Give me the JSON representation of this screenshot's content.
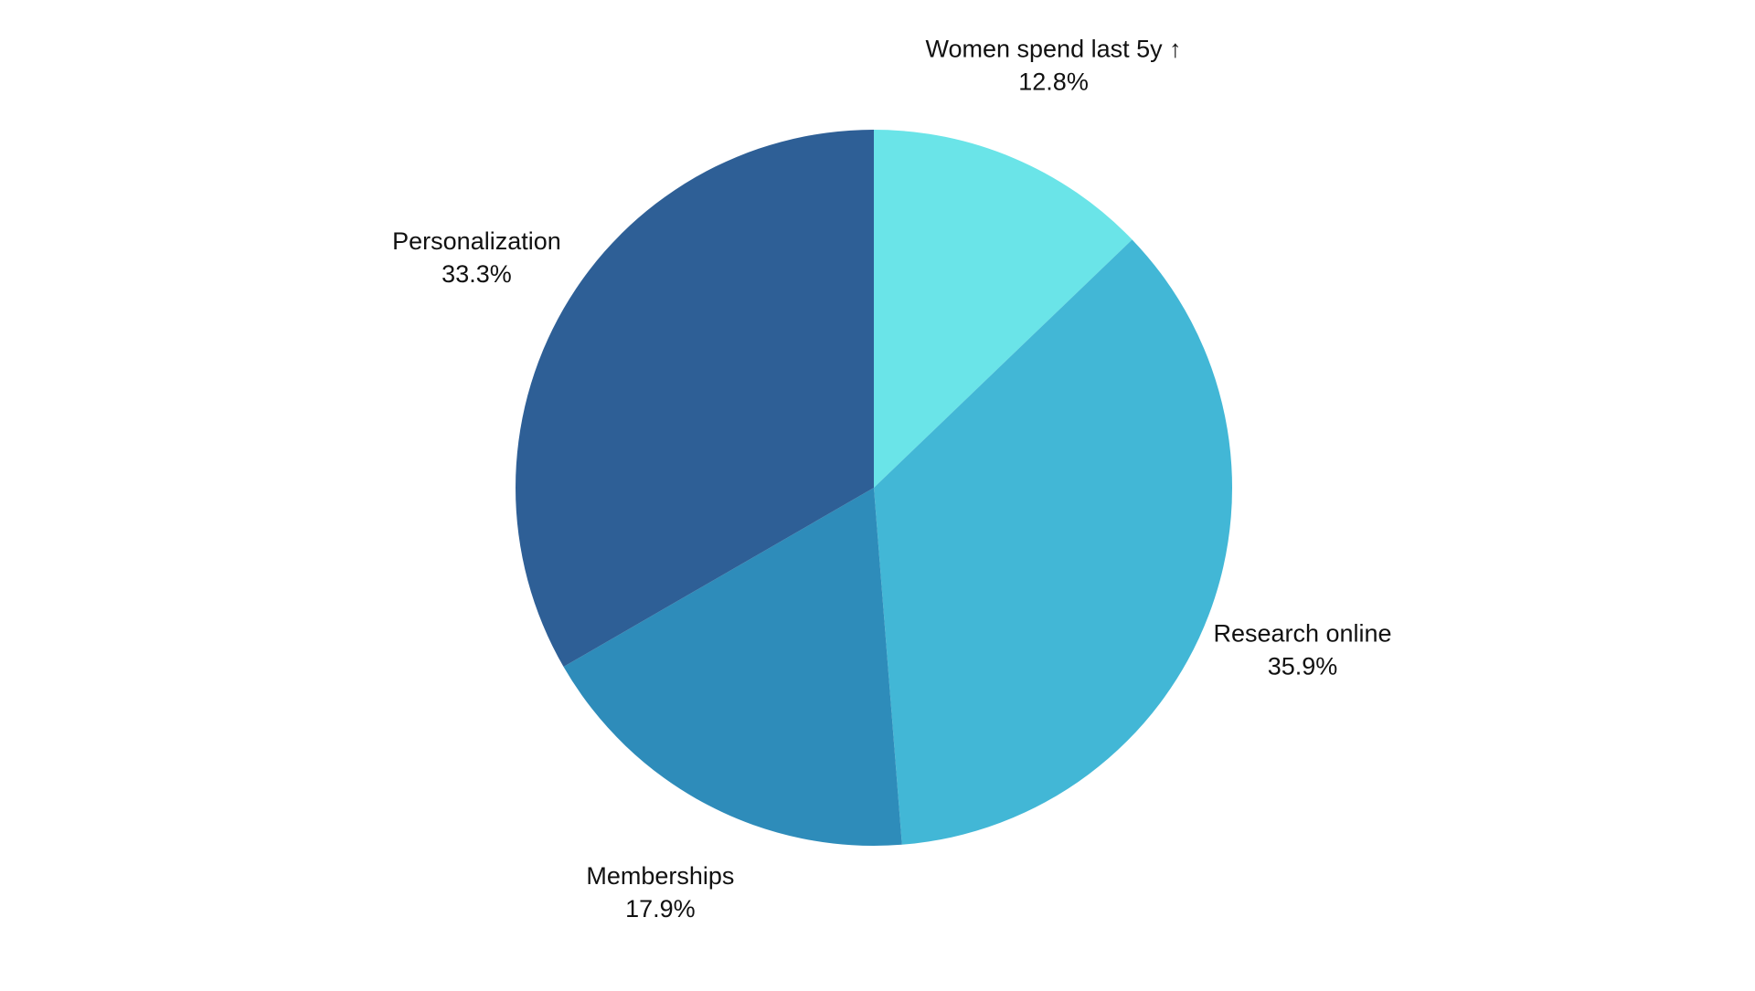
{
  "chart_data": {
    "type": "pie",
    "categories": [
      "Women spend last 5y ↑",
      "Research online",
      "Memberships",
      "Personalization"
    ],
    "values": [
      12.8,
      35.9,
      17.9,
      33.3
    ],
    "value_labels": [
      "12.8%",
      "35.9%",
      "17.9%",
      "33.3%"
    ],
    "colors": [
      "#6ae4e8",
      "#42b7d6",
      "#2e8cba",
      "#2e5f96"
    ]
  }
}
